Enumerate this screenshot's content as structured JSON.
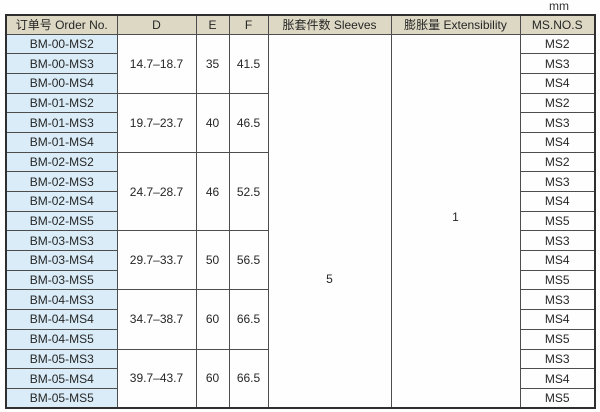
{
  "unit_label": "mm",
  "colors": {
    "header_bg": "#ddd8c4",
    "order_col_bg": "#d9ecf8",
    "grid_line": "#4d4d4d",
    "outer_border": "#2f2f2f",
    "text": "#262626",
    "page_bg": "#fefefe"
  },
  "table": {
    "headers": [
      {
        "key": "order-no",
        "label": "订单号 Order No."
      },
      {
        "key": "d",
        "label": "D"
      },
      {
        "key": "e",
        "label": "E"
      },
      {
        "key": "f",
        "label": "F"
      },
      {
        "key": "sleeves",
        "label": "胀套件数 Sleeves"
      },
      {
        "key": "extensibility",
        "label": "膨胀量 Extensibility"
      },
      {
        "key": "ms-no-s",
        "label": "MS.NO.S"
      }
    ],
    "sleeves_value": "5",
    "extensibility_value": "1",
    "groups": [
      {
        "d": "14.7–18.7",
        "e": "35",
        "f": "41.5",
        "rows": [
          {
            "order_no": "BM-00-MS2",
            "ms": "MS2"
          },
          {
            "order_no": "BM-00-MS3",
            "ms": "MS3"
          },
          {
            "order_no": "BM-00-MS4",
            "ms": "MS4"
          }
        ]
      },
      {
        "d": "19.7–23.7",
        "e": "40",
        "f": "46.5",
        "rows": [
          {
            "order_no": "BM-01-MS2",
            "ms": "MS2"
          },
          {
            "order_no": "BM-01-MS3",
            "ms": "MS3"
          },
          {
            "order_no": "BM-01-MS4",
            "ms": "MS4"
          }
        ]
      },
      {
        "d": "24.7–28.7",
        "e": "46",
        "f": "52.5",
        "rows": [
          {
            "order_no": "BM-02-MS2",
            "ms": "MS2"
          },
          {
            "order_no": "BM-02-MS3",
            "ms": "MS3"
          },
          {
            "order_no": "BM-02-MS4",
            "ms": "MS4"
          },
          {
            "order_no": "BM-02-MS5",
            "ms": "MS5"
          }
        ]
      },
      {
        "d": "29.7–33.7",
        "e": "50",
        "f": "56.5",
        "rows": [
          {
            "order_no": "BM-03-MS3",
            "ms": "MS3"
          },
          {
            "order_no": "BM-03-MS4",
            "ms": "MS4"
          },
          {
            "order_no": "BM-03-MS5",
            "ms": "MS5"
          }
        ]
      },
      {
        "d": "34.7–38.7",
        "e": "60",
        "f": "66.5",
        "rows": [
          {
            "order_no": "BM-04-MS3",
            "ms": "MS3"
          },
          {
            "order_no": "BM-04-MS4",
            "ms": "MS4"
          },
          {
            "order_no": "BM-04-MS5",
            "ms": "MS5"
          }
        ]
      },
      {
        "d": "39.7–43.7",
        "e": "60",
        "f": "66.5",
        "rows": [
          {
            "order_no": "BM-05-MS3",
            "ms": "MS3"
          },
          {
            "order_no": "BM-05-MS4",
            "ms": "MS4"
          },
          {
            "order_no": "BM-05-MS5",
            "ms": "MS5"
          }
        ]
      }
    ]
  }
}
